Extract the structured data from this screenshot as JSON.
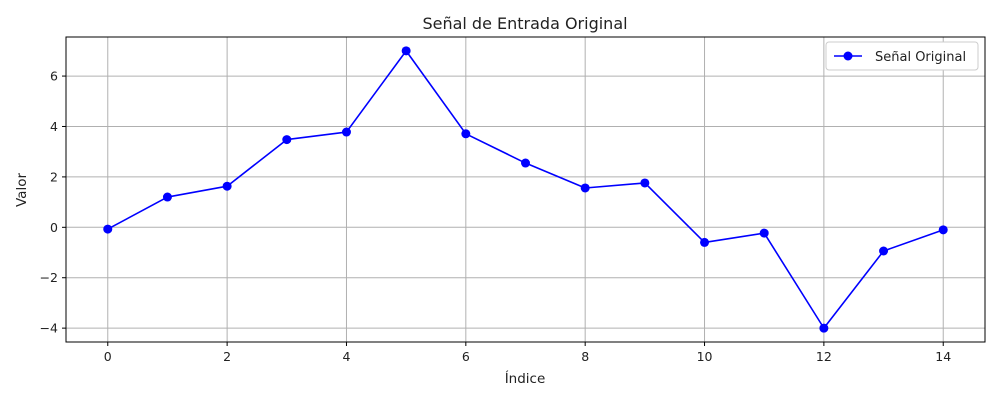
{
  "chart_data": {
    "type": "line",
    "title": "Señal de Entrada Original",
    "xlabel": "Índice",
    "ylabel": "Valor",
    "xlim": [
      -0.7,
      14.7
    ],
    "ylim": [
      -4.55,
      7.55
    ],
    "xticks": [
      0,
      2,
      4,
      6,
      8,
      10,
      12,
      14
    ],
    "yticks": [
      -4,
      -2,
      0,
      2,
      4,
      6
    ],
    "grid": true,
    "legend_position": "top-right",
    "series": [
      {
        "name": "Señal Original",
        "color": "#0000ff",
        "marker": "circle",
        "x": [
          0,
          1,
          2,
          3,
          4,
          5,
          6,
          7,
          8,
          9,
          10,
          11,
          12,
          13,
          14
        ],
        "y": [
          -0.07,
          1.2,
          1.63,
          3.48,
          3.78,
          7.0,
          3.71,
          2.55,
          1.56,
          1.76,
          -0.6,
          -0.23,
          -4.0,
          -0.94,
          -0.1
        ]
      }
    ]
  }
}
